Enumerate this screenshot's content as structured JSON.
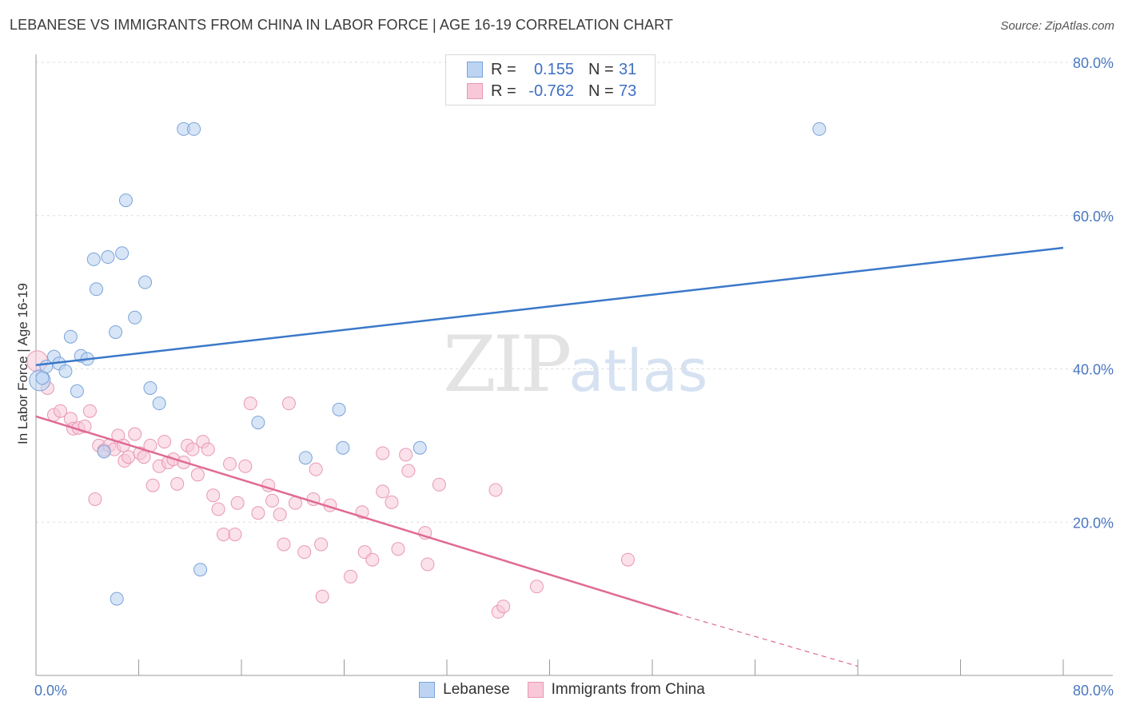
{
  "header": {
    "title": "LEBANESE VS IMMIGRANTS FROM CHINA IN LABOR FORCE | AGE 16-19 CORRELATION CHART",
    "source": "Source: ZipAtlas.com"
  },
  "watermark": {
    "zip": "ZIP",
    "atlas": "atlas"
  },
  "legend": {
    "rows": [
      {
        "r_label": "R =",
        "r_value": "0.155",
        "n_label": "N =",
        "n_value": "31"
      },
      {
        "r_label": "R =",
        "r_value": "-0.762",
        "n_label": "N =",
        "n_value": "73"
      }
    ]
  },
  "bottom_legend": {
    "series1": "Lebanese",
    "series2": "Immigrants from China"
  },
  "colors": {
    "lebanese_fill": "#bcd4f2",
    "lebanese_stroke": "#7aa3d9",
    "lebanese_line": "#3a78c9",
    "china_fill": "#f8c8d8",
    "china_stroke": "#e898b4",
    "china_line": "#e06a94",
    "tick_text": "#4a78c0",
    "grid": "#dddddd"
  },
  "chart_data": {
    "type": "scatter",
    "title": "LEBANESE VS IMMIGRANTS FROM CHINA IN LABOR FORCE | AGE 16-19 CORRELATION CHART",
    "xlabel": "",
    "ylabel": "In Labor Force | Age 16-19",
    "xlim": [
      0,
      80
    ],
    "ylim": [
      0,
      80
    ],
    "x_tick_labels": [
      "0.0%",
      "80.0%"
    ],
    "y_tick_labels": [
      "20.0%",
      "40.0%",
      "60.0%",
      "80.0%"
    ],
    "y_ticks": [
      20,
      40,
      60,
      80
    ],
    "grid": true,
    "legend_position": "top-center",
    "series": [
      {
        "name": "Lebanese",
        "r": 0.155,
        "n": 31,
        "trend": {
          "x0": 0,
          "y0": 40.5,
          "x1": 80,
          "y1": 55.8
        },
        "points": [
          [
            0.3,
            38.5
          ],
          [
            0.5,
            38.8
          ],
          [
            0.8,
            40.3
          ],
          [
            1.4,
            41.6
          ],
          [
            1.8,
            40.7
          ],
          [
            2.3,
            39.7
          ],
          [
            2.7,
            44.2
          ],
          [
            3.2,
            37.1
          ],
          [
            3.5,
            41.7
          ],
          [
            4.0,
            41.3
          ],
          [
            4.5,
            54.3
          ],
          [
            4.7,
            50.4
          ],
          [
            5.3,
            29.2
          ],
          [
            5.6,
            54.6
          ],
          [
            6.2,
            44.8
          ],
          [
            6.7,
            55.1
          ],
          [
            7.0,
            62.0
          ],
          [
            7.7,
            46.7
          ],
          [
            8.5,
            51.3
          ],
          [
            8.9,
            37.5
          ],
          [
            9.6,
            35.5
          ],
          [
            11.5,
            71.3
          ],
          [
            12.3,
            71.3
          ],
          [
            12.8,
            13.8
          ],
          [
            6.3,
            10.0
          ],
          [
            17.3,
            33.0
          ],
          [
            21.0,
            28.4
          ],
          [
            23.6,
            34.7
          ],
          [
            23.9,
            29.7
          ],
          [
            29.9,
            29.7
          ],
          [
            61.0,
            71.3
          ]
        ]
      },
      {
        "name": "Immigrants from China",
        "r": -0.762,
        "n": 73,
        "trend": {
          "x0": 0,
          "y0": 33.8,
          "x1": 50,
          "y1": 8.0,
          "dash_to_x": 64,
          "dash_to_y": 1.2
        },
        "points": [
          [
            0.1,
            41.0
          ],
          [
            0.9,
            37.5
          ],
          [
            1.4,
            34.0
          ],
          [
            1.9,
            34.5
          ],
          [
            2.7,
            33.5
          ],
          [
            2.9,
            32.2
          ],
          [
            3.3,
            32.3
          ],
          [
            3.8,
            32.5
          ],
          [
            4.2,
            34.5
          ],
          [
            4.6,
            23.0
          ],
          [
            4.9,
            30.0
          ],
          [
            5.3,
            29.4
          ],
          [
            5.7,
            30.0
          ],
          [
            6.1,
            29.5
          ],
          [
            6.4,
            31.3
          ],
          [
            6.8,
            30.0
          ],
          [
            6.9,
            28.0
          ],
          [
            7.2,
            28.5
          ],
          [
            7.7,
            31.5
          ],
          [
            8.1,
            29.0
          ],
          [
            8.4,
            28.5
          ],
          [
            8.9,
            30.0
          ],
          [
            9.1,
            24.8
          ],
          [
            9.6,
            27.3
          ],
          [
            10.0,
            30.5
          ],
          [
            10.3,
            27.8
          ],
          [
            10.7,
            28.2
          ],
          [
            11.0,
            25.0
          ],
          [
            11.5,
            27.8
          ],
          [
            11.8,
            30.0
          ],
          [
            12.2,
            29.5
          ],
          [
            12.6,
            26.2
          ],
          [
            13.0,
            30.5
          ],
          [
            13.4,
            29.5
          ],
          [
            13.8,
            23.5
          ],
          [
            14.2,
            21.7
          ],
          [
            14.6,
            18.4
          ],
          [
            15.1,
            27.6
          ],
          [
            15.5,
            18.4
          ],
          [
            15.7,
            22.5
          ],
          [
            16.3,
            27.3
          ],
          [
            16.7,
            35.5
          ],
          [
            17.3,
            21.2
          ],
          [
            18.1,
            24.8
          ],
          [
            18.4,
            22.8
          ],
          [
            19.0,
            21.0
          ],
          [
            19.3,
            17.1
          ],
          [
            19.7,
            35.5
          ],
          [
            20.2,
            22.5
          ],
          [
            20.9,
            16.1
          ],
          [
            21.6,
            23.0
          ],
          [
            21.8,
            26.9
          ],
          [
            22.2,
            17.1
          ],
          [
            22.3,
            10.3
          ],
          [
            22.9,
            22.2
          ],
          [
            24.5,
            12.9
          ],
          [
            25.4,
            21.3
          ],
          [
            25.6,
            16.1
          ],
          [
            26.2,
            15.1
          ],
          [
            27.0,
            29.0
          ],
          [
            27.7,
            22.6
          ],
          [
            28.2,
            16.5
          ],
          [
            28.8,
            28.8
          ],
          [
            29.0,
            26.7
          ],
          [
            30.3,
            18.6
          ],
          [
            30.5,
            14.5
          ],
          [
            31.4,
            24.9
          ],
          [
            35.8,
            24.2
          ],
          [
            36.0,
            8.3
          ],
          [
            36.4,
            9.0
          ],
          [
            39.0,
            11.6
          ],
          [
            46.1,
            15.1
          ],
          [
            27.0,
            24.0
          ]
        ]
      }
    ]
  }
}
